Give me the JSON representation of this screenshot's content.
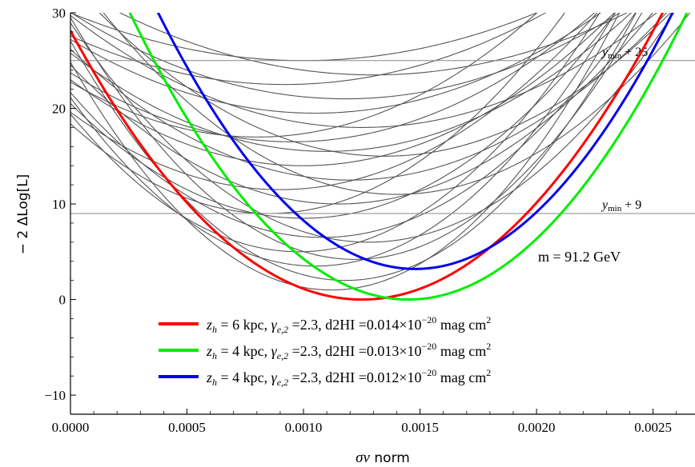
{
  "chart_data": {
    "type": "line",
    "title": "",
    "xlabel_var": "σv",
    "xlabel_rest": " norm",
    "ylabel": "− 2 ΔLog[L]",
    "xlim": [
      0.0,
      0.00268
    ],
    "ylim": [
      -12,
      30
    ],
    "x_ticks": [
      0.0,
      0.0005,
      0.001,
      0.0015,
      0.002,
      0.0025
    ],
    "x_tick_labels": [
      "0.0000",
      "0.0005",
      "0.0010",
      "0.0015",
      "0.0020",
      "0.0025"
    ],
    "y_ticks": [
      -10,
      0,
      10,
      20,
      30
    ],
    "y_tick_labels": [
      "−10",
      "0",
      "10",
      "20",
      "30"
    ],
    "hlines": [
      {
        "y": 25,
        "label_var": "y",
        "label_sub": "min",
        "label_rest": " + 25"
      },
      {
        "y": 9,
        "label_var": "y",
        "label_sub": "min",
        "label_rest": " + 9"
      }
    ],
    "annotation": "m = 91.2 GeV",
    "highlighted_series": [
      {
        "color": "#ff0000",
        "min_x": 0.00125,
        "min_y": 0.0,
        "k": 18000000.0,
        "legend": {
          "zh_var": "z",
          "zh_sub": "h",
          "zh_val": " = 6 kpc, ",
          "g_var": "γ",
          "g_sub": "e,2",
          "g_val": " =2.3, d2HI =0.014×10",
          "exp": "−20",
          "tail": " mag cm",
          "sq": "2"
        }
      },
      {
        "color": "#00ee00",
        "min_x": 0.00145,
        "min_y": 0.0,
        "k": 21000000.0,
        "legend": {
          "zh_var": "z",
          "zh_sub": "h",
          "zh_val": " = 4 kpc, ",
          "g_var": "γ",
          "g_sub": "e,2",
          "g_val": " =2.3, d2HI =0.013×10",
          "exp": "−20",
          "tail": " mag cm",
          "sq": "2"
        }
      },
      {
        "color": "#0000ee",
        "min_x": 0.00148,
        "min_y": 3.2,
        "k": 22000000.0,
        "legend": {
          "zh_var": "z",
          "zh_sub": "h",
          "zh_val": " = 4 kpc, ",
          "g_var": "γ",
          "g_sub": "e,2",
          "g_val": " =2.3, d2HI =0.012×10",
          "exp": "−20",
          "tail": " mag cm",
          "sq": "2"
        }
      }
    ],
    "background_series": [
      {
        "min_x": 0.00112,
        "min_y": 1.0,
        "k": 19000000.0
      },
      {
        "min_x": 0.00118,
        "min_y": 2.0,
        "k": 18000000.0
      },
      {
        "min_x": 0.00105,
        "min_y": 3.5,
        "k": 16000000.0
      },
      {
        "min_x": 0.00098,
        "min_y": 5.0,
        "k": 15000000.0
      },
      {
        "min_x": 0.00108,
        "min_y": 6.5,
        "k": 13000000.0
      },
      {
        "min_x": 0.001,
        "min_y": 8.5,
        "k": 12000000.0
      },
      {
        "min_x": 0.00115,
        "min_y": 10.0,
        "k": 11000000.0
      },
      {
        "min_x": 0.0009,
        "min_y": 11.5,
        "k": 10000000.0
      },
      {
        "min_x": 0.0012,
        "min_y": 12.5,
        "k": 9500000.0
      },
      {
        "min_x": 0.001,
        "min_y": 14.0,
        "k": 9000000.0
      },
      {
        "min_x": 0.0011,
        "min_y": 15.5,
        "k": 8500000.0
      },
      {
        "min_x": 0.00095,
        "min_y": 16.5,
        "k": 8000000.0
      },
      {
        "min_x": 0.00125,
        "min_y": 18.0,
        "k": 7500000.0
      },
      {
        "min_x": 0.00105,
        "min_y": 19.5,
        "k": 7000000.0
      },
      {
        "min_x": 0.00118,
        "min_y": 21.0,
        "k": 6500000.0
      },
      {
        "min_x": 0.00092,
        "min_y": 22.5,
        "k": 6000000.0
      },
      {
        "min_x": 0.0013,
        "min_y": 23.5,
        "k": 5500000.0
      },
      {
        "min_x": 0.001,
        "min_y": 25.0,
        "k": 5000000.0
      },
      {
        "min_x": 0.00135,
        "min_y": 15.0,
        "k": 10000000.0
      },
      {
        "min_x": 0.00128,
        "min_y": 6.0,
        "k": 14000000.0
      },
      {
        "min_x": 0.00085,
        "min_y": 9.0,
        "k": 13000000.0
      },
      {
        "min_x": 0.0014,
        "min_y": 11.0,
        "k": 12000000.0
      },
      {
        "min_x": 0.0008,
        "min_y": 17.0,
        "k": 9000000.0
      },
      {
        "min_x": 0.00122,
        "min_y": 4.2,
        "k": 17000000.0
      }
    ]
  }
}
